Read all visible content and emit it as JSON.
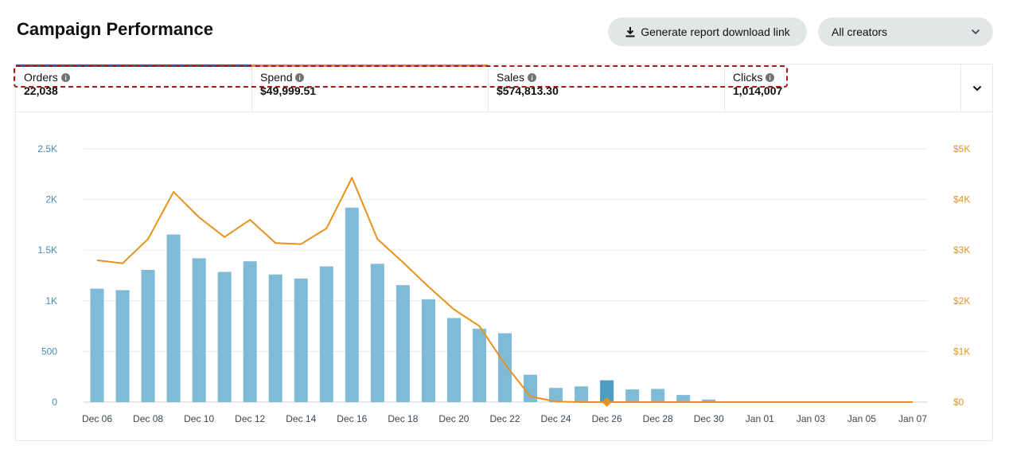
{
  "header": {
    "title": "Campaign Performance",
    "download_label": "Generate report download link",
    "creator_filter": "All creators"
  },
  "metrics": [
    {
      "label": "Orders",
      "value": "22,038",
      "accent": "#2f5fa8"
    },
    {
      "label": "Spend",
      "value": "$49,999.51",
      "accent": "#e8921e"
    },
    {
      "label": "Sales",
      "value": "$574,813.30",
      "accent": ""
    },
    {
      "label": "Clicks",
      "value": "1,014,007",
      "accent": ""
    }
  ],
  "colors": {
    "bars": "#7fbbd6",
    "bar_highlight": "#4d9cc4",
    "line": "#e8921e",
    "left_axis": "#4a8ab5",
    "right_axis": "#e8921e"
  },
  "chart_data": {
    "type": "bar",
    "x": [
      "Dec 06",
      "Dec 07",
      "Dec 08",
      "Dec 09",
      "Dec 10",
      "Dec 11",
      "Dec 12",
      "Dec 13",
      "Dec 14",
      "Dec 15",
      "Dec 16",
      "Dec 17",
      "Dec 18",
      "Dec 19",
      "Dec 20",
      "Dec 21",
      "Dec 22",
      "Dec 23",
      "Dec 24",
      "Dec 25",
      "Dec 26",
      "Dec 27",
      "Dec 28",
      "Dec 29",
      "Dec 30",
      "Dec 31",
      "Jan 01",
      "Jan 02",
      "Jan 03",
      "Jan 04",
      "Jan 05",
      "Jan 06",
      "Jan 07"
    ],
    "x_tick_labels": [
      "Dec 06",
      "Dec 08",
      "Dec 10",
      "Dec 12",
      "Dec 14",
      "Dec 16",
      "Dec 18",
      "Dec 20",
      "Dec 22",
      "Dec 24",
      "Dec 26",
      "Dec 28",
      "Dec 30",
      "Jan 01",
      "Jan 03",
      "Jan 05",
      "Jan 07"
    ],
    "highlight": "Dec 26",
    "series": [
      {
        "type": "bar",
        "axis": "left",
        "values": [
          1120,
          1105,
          1305,
          1655,
          1420,
          1285,
          1390,
          1260,
          1220,
          1340,
          1920,
          1365,
          1155,
          1015,
          830,
          725,
          680,
          270,
          140,
          155,
          215,
          125,
          130,
          70,
          25,
          0,
          0,
          0,
          0,
          0,
          0,
          0,
          0
        ]
      },
      {
        "type": "line",
        "axis": "right",
        "values": [
          2800,
          2740,
          3220,
          4150,
          3650,
          3260,
          3600,
          3140,
          3120,
          3430,
          4430,
          3220,
          2760,
          2280,
          1830,
          1500,
          750,
          110,
          10,
          0,
          0,
          0,
          0,
          0,
          0,
          0,
          0,
          0,
          0,
          0,
          0,
          0,
          0
        ]
      }
    ],
    "y_left": {
      "ticks": [
        "0",
        "500",
        "1K",
        "1.5K",
        "2K",
        "2.5K"
      ],
      "ylim": [
        0,
        2500
      ]
    },
    "y_right": {
      "ticks": [
        "$0",
        "$1K",
        "$2K",
        "$3K",
        "$4K",
        "$5K"
      ],
      "ylim": [
        0,
        5000
      ]
    },
    "grid": true
  }
}
